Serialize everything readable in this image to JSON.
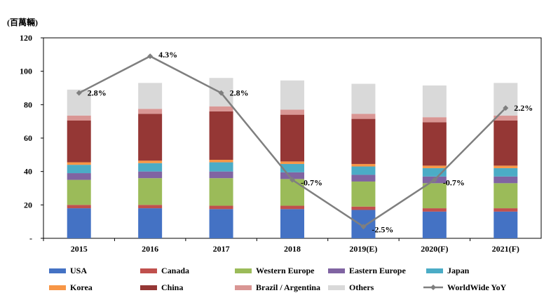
{
  "chart_data": {
    "type": "bar",
    "stacked": true,
    "unit_label": "(百萬輛)",
    "categories": [
      "2015",
      "2016",
      "2017",
      "2018",
      "2019(E)",
      "2020(F)",
      "2021(F)"
    ],
    "ylim": [
      0,
      120
    ],
    "yticks": [
      "-",
      "20",
      "40",
      "60",
      "80",
      "100",
      "120"
    ],
    "grid": false,
    "legend_position": "bottom",
    "series": [
      {
        "name": "USA",
        "color": "#4472C4",
        "values": [
          18,
          18,
          17.5,
          17.5,
          17,
          16,
          16
        ]
      },
      {
        "name": "Canada",
        "color": "#C0504D",
        "values": [
          2,
          2,
          2,
          2,
          2,
          2,
          2
        ]
      },
      {
        "name": "Western Europe",
        "color": "#9BBB59",
        "values": [
          15,
          16,
          16.5,
          16,
          15,
          15,
          15
        ]
      },
      {
        "name": "Eastern Europe",
        "color": "#8064A2",
        "values": [
          4,
          4,
          4,
          4,
          4,
          4,
          4
        ]
      },
      {
        "name": "Japan",
        "color": "#4BACC6",
        "values": [
          5,
          5,
          5.5,
          5,
          5,
          5,
          5
        ]
      },
      {
        "name": "Korea",
        "color": "#F79646",
        "values": [
          1.5,
          1.5,
          1.5,
          1.5,
          1.5,
          1.5,
          1.5
        ]
      },
      {
        "name": "China",
        "color": "#953735",
        "values": [
          25,
          28,
          29,
          28,
          27,
          26,
          27
        ]
      },
      {
        "name": "Brazil / Argentina",
        "color": "#D99694",
        "values": [
          3,
          3,
          3,
          3,
          3,
          3,
          3
        ]
      },
      {
        "name": "Others",
        "color": "#D9D9D9",
        "values": [
          15.5,
          15.5,
          17,
          17.5,
          18,
          19,
          19.5
        ]
      }
    ],
    "line": {
      "name": "WorldWide YoY",
      "color": "#7F7F7F",
      "plot_values": [
        87,
        109,
        87,
        35,
        7,
        35,
        78
      ],
      "labels": [
        "2.8%",
        "4.3%",
        "2.8%",
        "-0.7%",
        "-2.5%",
        "-0.7%",
        "2.2%"
      ]
    }
  }
}
